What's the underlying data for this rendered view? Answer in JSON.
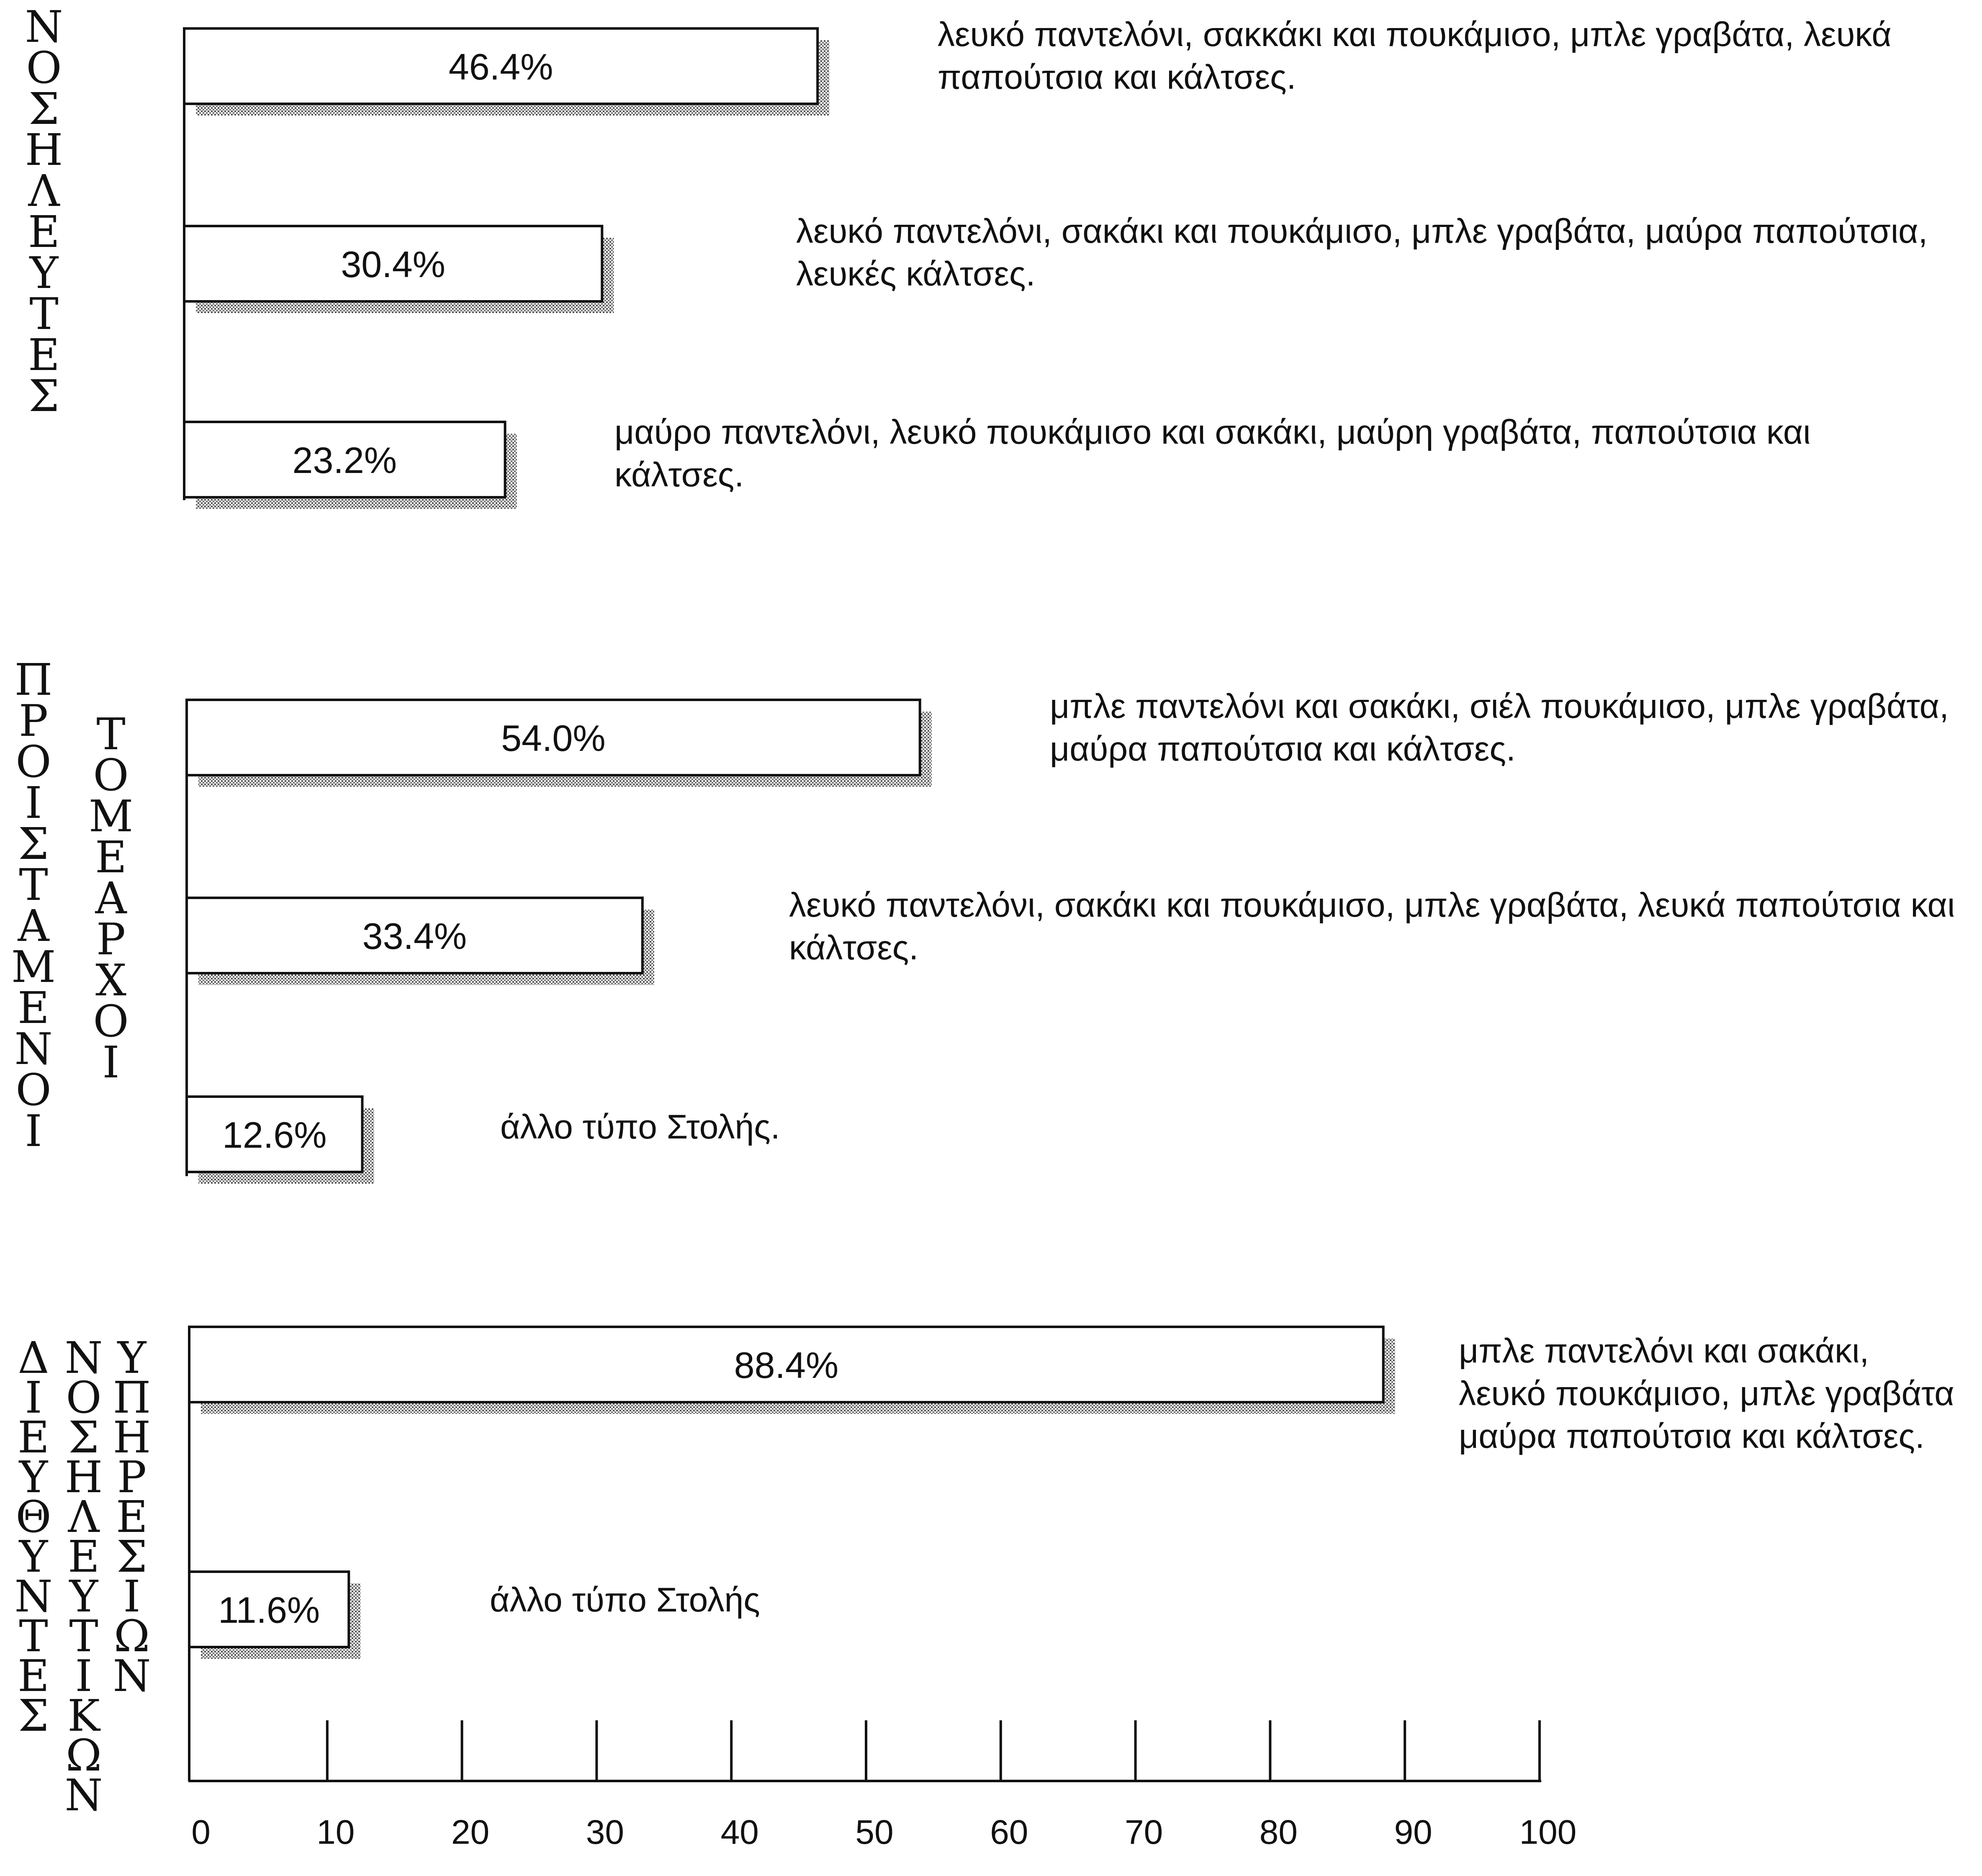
{
  "chart_data": {
    "type": "bar",
    "orientation": "horizontal",
    "xlim": [
      0,
      100
    ],
    "x_ticks": [
      "0",
      "10",
      "20",
      "30",
      "40",
      "50",
      "60",
      "70",
      "80",
      "90",
      "100"
    ],
    "groups": [
      {
        "labels": [
          "ΝΟΣΗΛΕΥΤΕΣ"
        ],
        "bars": [
          {
            "value": 46.4,
            "label": "46.4%",
            "description": [
              "λευκό παντελόνι, σακκάκι και πουκάμισο, μπλε γραβάτα, λευκά",
              "παπούτσια και κάλτσες."
            ]
          },
          {
            "value": 30.4,
            "label": "30.4%",
            "description": [
              "λευκό παντελόνι, σακάκι και πουκάμισο, μπλε γραβάτα, μαύρα παπούτσια,",
              "λευκές κάλτσες."
            ]
          },
          {
            "value": 23.2,
            "label": "23.2%",
            "description": [
              "μαύρο παντελόνι, λευκό πουκάμισο και σακάκι, μαύρη γραβάτα, παπούτσια και",
              "κάλτσες."
            ]
          }
        ]
      },
      {
        "labels": [
          "ΠΡΟΙΣΤΑΜΕΝΟΙ",
          "ΤΟΜΕΑΡΧΟΙ"
        ],
        "bars": [
          {
            "value": 54.0,
            "label": "54.0%",
            "description": [
              "μπλε παντελόνι και σακάκι, σιέλ πουκάμισο, μπλε γραβάτα,",
              "μαύρα παπούτσια και κάλτσες."
            ]
          },
          {
            "value": 33.4,
            "label": "33.4%",
            "description": [
              "λευκό παντελόνι, σακάκι και πουκάμισο, μπλε γραβάτα, λευκά παπούτσια και",
              "κάλτσες."
            ]
          },
          {
            "value": 12.6,
            "label": "12.6%",
            "description": [
              "άλλο τύπο Στολής."
            ]
          }
        ]
      },
      {
        "labels": [
          "ΔΙΕΥΘΥΝΤΕΣ",
          "ΝΟΣΗΛΕΥΤΙΚΩΝ",
          "ΥΠΗΡΕΣΙΩΝ"
        ],
        "bars": [
          {
            "value": 88.4,
            "label": "88.4%",
            "description": [
              "μπλε παντελόνι και σακάκι,",
              "λευκό πουκάμισο, μπλε γραβάτα",
              "μαύρα παπούτσια και κάλτσες."
            ]
          },
          {
            "value": 11.6,
            "label": "11.6%",
            "description": [
              "άλλο τύπο Στολής"
            ]
          }
        ]
      }
    ]
  }
}
